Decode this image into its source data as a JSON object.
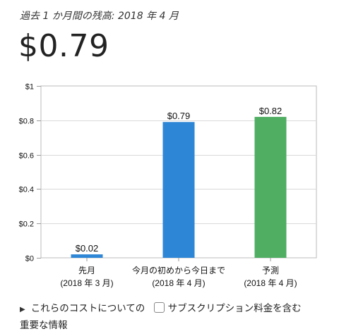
{
  "header": {
    "subtitle": "過去 1 か月間の残高: 2018 年 4 月",
    "amount": "$0.79"
  },
  "chart_data": {
    "type": "bar",
    "categories": [
      [
        "先月",
        "(2018 年 3 月)"
      ],
      [
        "今月の初めから今日まで",
        "(2018 年 4 月)"
      ],
      [
        "予測",
        "(2018 年 4 月)"
      ]
    ],
    "values": [
      0.02,
      0.79,
      0.82
    ],
    "data_labels": [
      "$0.02",
      "$0.79",
      "$0.82"
    ],
    "bar_colors": [
      "#2e86d6",
      "#2e86d6",
      "#4fae62"
    ],
    "ylim": [
      0,
      1
    ],
    "yticks": [
      0,
      0.2,
      0.4,
      0.6,
      0.8,
      1
    ],
    "ytick_labels": [
      "$0",
      "$0.2",
      "$0.4",
      "$0.6",
      "$0.8",
      "$1"
    ],
    "grid": true,
    "title": "",
    "xlabel": "",
    "ylabel": ""
  },
  "footer": {
    "expand_label": "これらのコストについての重要な情報",
    "expand_icon": "triangle-right-icon",
    "checkbox_label": "サブスクリプション料金を含む",
    "checkbox_checked": false
  }
}
